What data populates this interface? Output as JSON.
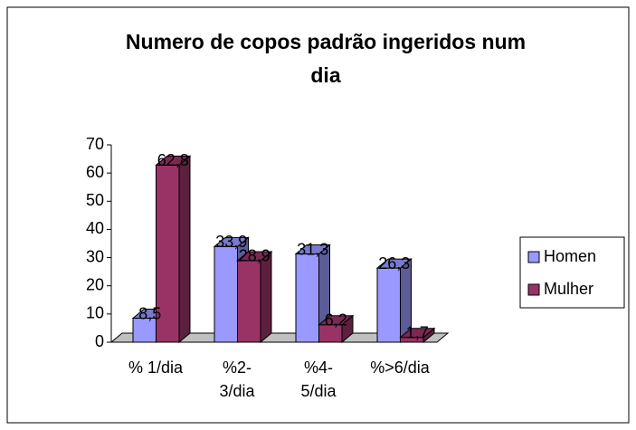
{
  "chart_data": {
    "type": "bar3d",
    "title": "Numero de copos padrão ingeridos num dia",
    "categories": [
      "% 1/dia",
      "%2-3/dia",
      "%4-5/dia",
      "%>6/dia"
    ],
    "series": [
      {
        "name": "Homen",
        "color": "#9999ff",
        "values": [
          8.5,
          33.9,
          31.3,
          26.3
        ],
        "value_labels": [
          "8,5",
          "33,9",
          "31,3",
          "26,3"
        ]
      },
      {
        "name": "Mulher",
        "color": "#993366",
        "values": [
          62.8,
          28.9,
          6.2,
          1.7
        ],
        "value_labels": [
          "62,8",
          "28,9",
          "6,2",
          "1,7"
        ]
      }
    ],
    "ylim": [
      0,
      70
    ],
    "yticks": [
      0,
      10,
      20,
      30,
      40,
      50,
      60,
      70
    ],
    "legend": "right"
  }
}
